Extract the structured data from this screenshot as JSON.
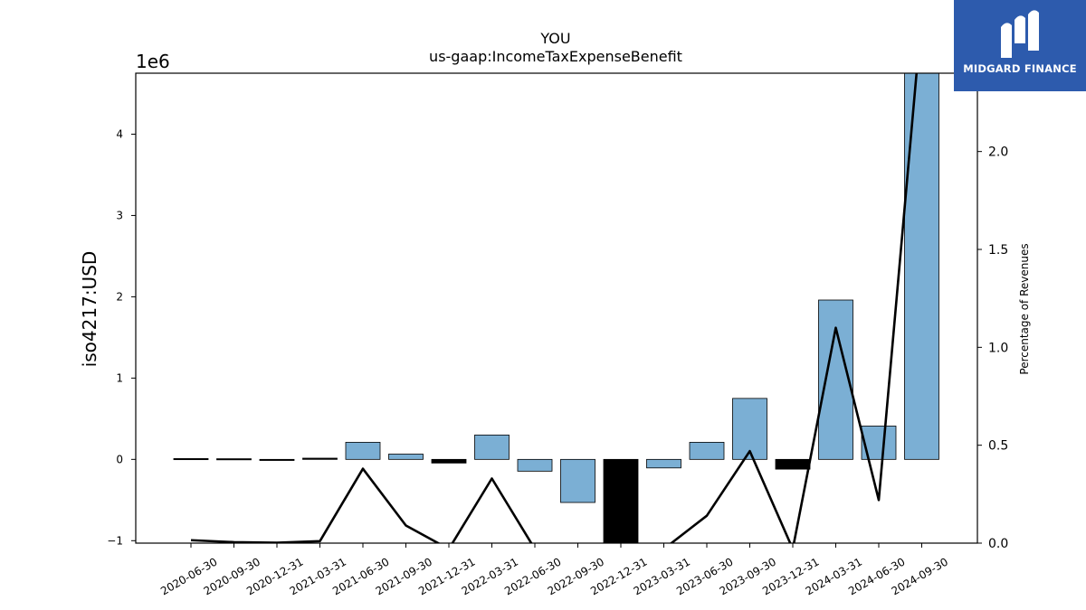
{
  "logo": {
    "text": "MIDGARD FINANCE"
  },
  "chart_data": {
    "type": "bar",
    "title": "YOU",
    "subtitle": "us-gaap:IncomeTaxExpenseBenefit",
    "ylabel": "iso4217:USD",
    "y2label": "Percentage of Revenues",
    "offset_label": "1e6",
    "categories": [
      "2020-06-30",
      "2020-09-30",
      "2020-12-31",
      "2021-03-31",
      "2021-06-30",
      "2021-09-30",
      "2021-12-31",
      "2022-03-31",
      "2022-06-30",
      "2022-09-30",
      "2022-12-31",
      "2023-03-31",
      "2023-06-30",
      "2023-09-30",
      "2023-12-31",
      "2024-03-31",
      "2024-06-30",
      "2024-09-30"
    ],
    "bar_values": [
      10000,
      8000,
      -5000,
      15000,
      210000,
      65000,
      -45000,
      300000,
      -145000,
      -530000,
      -1050000,
      -105000,
      210000,
      750000,
      -120000,
      1960000,
      410000,
      4750000
    ],
    "bar_colors": [
      "#000000",
      "#000000",
      "#000000",
      "#000000",
      "#7bafd4",
      "#7bafd4",
      "#000000",
      "#7bafd4",
      "#7bafd4",
      "#7bafd4",
      "#000000",
      "#7bafd4",
      "#7bafd4",
      "#7bafd4",
      "#000000",
      "#7bafd4",
      "#7bafd4",
      "#7bafd4"
    ],
    "line_values": [
      0.015,
      0.005,
      0.002,
      0.01,
      0.38,
      0.09,
      -0.03,
      0.33,
      -0.03,
      -0.03,
      -0.03,
      -0.03,
      0.14,
      0.47,
      -0.03,
      1.1,
      0.22,
      2.7
    ],
    "ylim": [
      -1030000,
      4750000
    ],
    "y2lim": [
      0,
      2.4
    ],
    "yticks": [
      -1000000,
      0,
      1000000,
      2000000,
      3000000,
      4000000
    ],
    "ytick_labels": [
      "−1",
      "0",
      "1",
      "2",
      "3",
      "4"
    ],
    "y2ticks": [
      0,
      0.5,
      1.0,
      1.5,
      2.0
    ],
    "y2tick_labels": [
      "0.0",
      "0.5",
      "1.0",
      "1.5",
      "2.0"
    ],
    "bar_fill": "#7bafd4",
    "negative_partial_color": "#000000",
    "line_color": "#000000"
  }
}
